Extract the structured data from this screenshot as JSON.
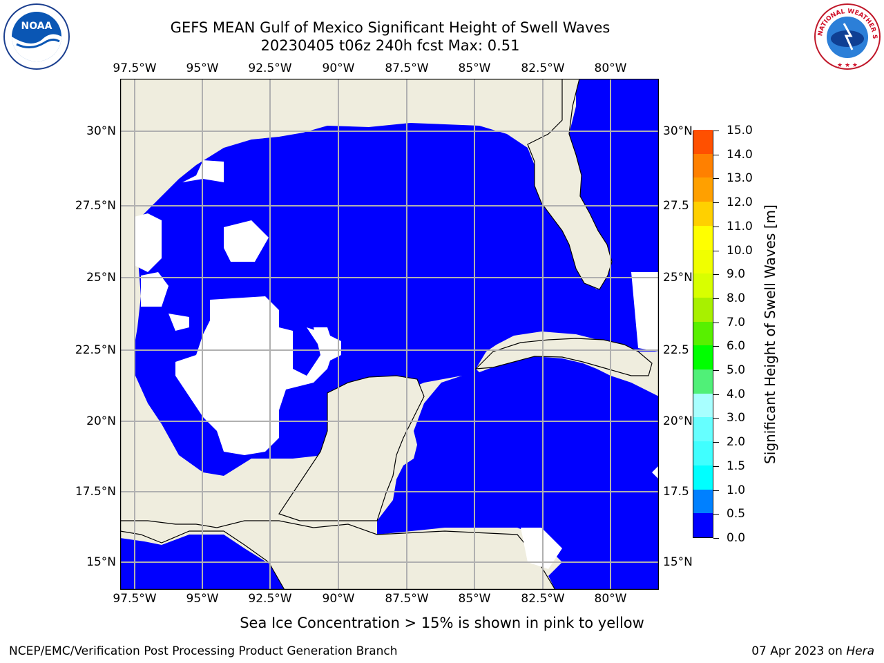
{
  "title_line1": "GEFS MEAN Gulf of Mexico Significant Height of Swell Waves",
  "title_line2": "20230405 t06z 240h fcst   Max: 0.51",
  "logos": {
    "left": {
      "name": "noaa-logo",
      "text": "NOAA"
    },
    "right": {
      "name": "nws-logo",
      "text": "NATIONAL WEATHER SERVICE"
    }
  },
  "map": {
    "lon_labels": [
      "97.5°W",
      "95°W",
      "92.5°W",
      "90°W",
      "87.5°W",
      "85°W",
      "82.5°W",
      "80°W"
    ],
    "lat_labels_left": [
      "30°N",
      "27.5°N",
      "25°N",
      "22.5°N",
      "20°N",
      "17.5°N",
      "15°N"
    ],
    "lat_labels_right": [
      "30°N",
      "27.5",
      "25°N",
      "22.5",
      "20°N",
      "17.5",
      "15°N"
    ],
    "lon_range": [
      -98,
      -78.2
    ],
    "lat_range": [
      14,
      31.8
    ],
    "colors": {
      "land": "#efedde",
      "ocean_low": "#0000ff",
      "ocean_nodata": "#ffffff",
      "grid": "#b0b0b0"
    }
  },
  "colorbar": {
    "label": "Significant Height of Swell Waves [m]",
    "tick_labels": [
      "0.0",
      "0.5",
      "1.0",
      "1.5",
      "2.0",
      "3.0",
      "4.0",
      "5.0",
      "6.0",
      "7.0",
      "8.0",
      "9.0",
      "10.0",
      "11.0",
      "12.0",
      "13.0",
      "14.0",
      "15.0"
    ],
    "colors": [
      "#0000ff",
      "#0080ff",
      "#00ffff",
      "#40ffff",
      "#66ffff",
      "#a8ffff",
      "#50f078",
      "#00ff00",
      "#58f000",
      "#a8f000",
      "#d8ff00",
      "#f0ff00",
      "#ffff00",
      "#ffd000",
      "#ffa000",
      "#ff8000",
      "#ff5000",
      "#ff2000",
      "#ff0000"
    ]
  },
  "footer": {
    "note": "Sea Ice Concentration > 15% is shown in pink to yellow",
    "credit": "NCEP/EMC/Verification Post Processing Product Generation Branch",
    "date_prefix": "07 Apr 2023 on ",
    "date_machine": "Hera"
  }
}
